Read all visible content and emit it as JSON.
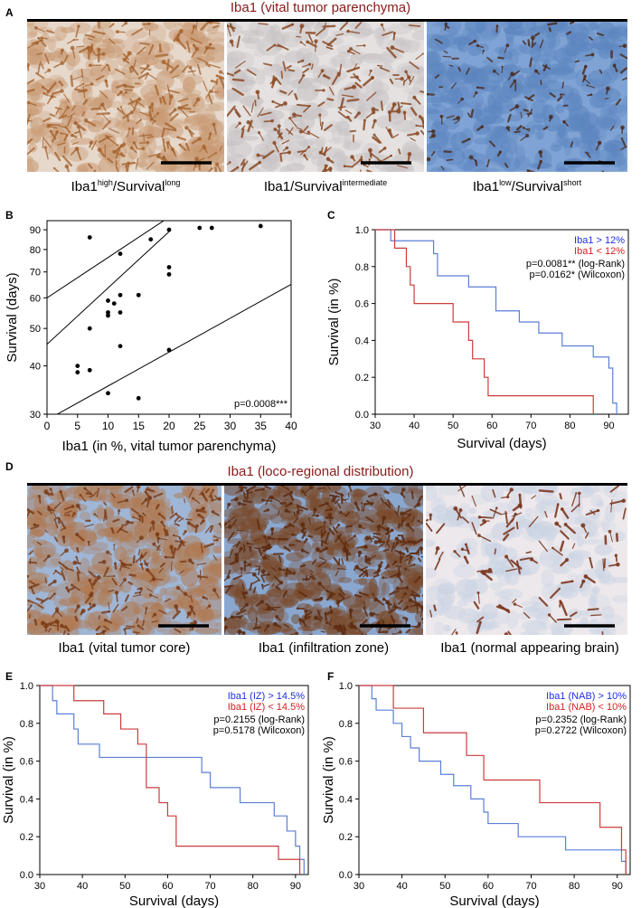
{
  "colors": {
    "title_dark_red": "#8b1a1a",
    "series_blue": "#1f2ee6",
    "series_red": "#d42020",
    "curve_blue": "#5b7fd6",
    "curve_red": "#cc3c3c",
    "tissue_beige": "#e8d9c8",
    "tissue_blue": "#7d9fd1",
    "stain_brown": "#8a4a1e"
  },
  "panelA": {
    "letter": "A",
    "title": "Iba1 (vital tumor parenchyma)",
    "images": [
      {
        "name": "Iba1 high survival long micrograph",
        "label_main": "Iba1",
        "label_sup1": "high",
        "label_mid": "/Survival",
        "label_sup2": "long"
      },
      {
        "name": "Iba1 survival intermediate micrograph",
        "label_main": "Iba1",
        "label_sup1": "",
        "label_mid": "/Survival",
        "label_sup2": "intermediate"
      },
      {
        "name": "Iba1 low survival short micrograph",
        "label_main": "Iba1",
        "label_sup1": "low",
        "label_mid": "/Survival",
        "label_sup2": "short"
      }
    ]
  },
  "panelB": {
    "letter": "B",
    "pvalue": "p=0.0008***"
  },
  "panelC": {
    "letter": "C"
  },
  "panelD": {
    "letter": "D",
    "title": "Iba1 (loco-regional distribution)",
    "captions": [
      "Iba1 (vital tumor core)",
      "Iba1 (infiltration zone)",
      "Iba1 (normal appearing brain)"
    ]
  },
  "panelE": {
    "letter": "E"
  },
  "panelF": {
    "letter": "F"
  },
  "chart_data": [
    {
      "id": "B",
      "type": "scatter",
      "xlabel": "Iba1 (in %, vital tumor parenchyma)",
      "ylabel": "Survival (days)",
      "xlim": [
        0,
        40
      ],
      "ylim": [
        30,
        95
      ],
      "yscale": "log",
      "xticks": [
        0,
        5,
        10,
        15,
        20,
        25,
        30,
        35,
        40
      ],
      "yticks": [
        30,
        40,
        50,
        60,
        70,
        80,
        90
      ],
      "points": [
        [
          5,
          40
        ],
        [
          5,
          38.5
        ],
        [
          7,
          39
        ],
        [
          7,
          50
        ],
        [
          7,
          86
        ],
        [
          10,
          59
        ],
        [
          10,
          55
        ],
        [
          10,
          54
        ],
        [
          10,
          34
        ],
        [
          11,
          58
        ],
        [
          12,
          61
        ],
        [
          12,
          55
        ],
        [
          12,
          78
        ],
        [
          12,
          45
        ],
        [
          15,
          61
        ],
        [
          15,
          33
        ],
        [
          17,
          85
        ],
        [
          20,
          90
        ],
        [
          20,
          72
        ],
        [
          20,
          69
        ],
        [
          20,
          44
        ],
        [
          25,
          91
        ],
        [
          27,
          91
        ],
        [
          35,
          92
        ]
      ],
      "fit_lines": [
        {
          "x": [
            0,
            20
          ],
          "y": [
            45.5,
            89
          ]
        },
        {
          "x": [
            0,
            20
          ],
          "y": [
            60,
            97
          ]
        },
        {
          "x": [
            0,
            40
          ],
          "y": [
            29,
            65
          ]
        }
      ],
      "annotation": "p=0.0008***"
    },
    {
      "id": "C",
      "type": "line",
      "xlabel": "Survival (days)",
      "ylabel": "Survival (in %)",
      "xlim": [
        30,
        95
      ],
      "ylim": [
        0,
        1
      ],
      "xticks": [
        30,
        40,
        50,
        60,
        70,
        80,
        90
      ],
      "yticks": [
        0.0,
        0.2,
        0.4,
        0.6,
        0.8,
        1.0
      ],
      "series": [
        {
          "name": "Iba1 > 12%",
          "color": "blue",
          "steps": [
            [
              30,
              1
            ],
            [
              34,
              0.94
            ],
            [
              45,
              0.87
            ],
            [
              46,
              0.75
            ],
            [
              54,
              0.69
            ],
            [
              61,
              0.56
            ],
            [
              67,
              0.5
            ],
            [
              72,
              0.44
            ],
            [
              78,
              0.37
            ],
            [
              86,
              0.31
            ],
            [
              90,
              0.25
            ],
            [
              91,
              0.06
            ],
            [
              92,
              0
            ]
          ]
        },
        {
          "name": "Iba1 < 12%",
          "color": "red",
          "steps": [
            [
              30,
              1
            ],
            [
              35,
              0.9
            ],
            [
              38,
              0.8
            ],
            [
              39,
              0.7
            ],
            [
              40,
              0.6
            ],
            [
              50,
              0.5
            ],
            [
              54,
              0.4
            ],
            [
              55,
              0.3
            ],
            [
              58,
              0.2
            ],
            [
              59,
              0.1
            ],
            [
              86,
              0
            ]
          ]
        }
      ],
      "annotations": [
        "p=0.0081** (log-Rank)",
        "p=0.0162* (Wilcoxon)"
      ]
    },
    {
      "id": "E",
      "type": "line",
      "xlabel": "Survival (days)",
      "ylabel": "Survival (in %)",
      "xlim": [
        30,
        93
      ],
      "ylim": [
        0,
        1
      ],
      "xticks": [
        30,
        40,
        50,
        60,
        70,
        80,
        90
      ],
      "yticks": [
        0.0,
        0.2,
        0.4,
        0.6,
        0.8,
        1.0
      ],
      "series": [
        {
          "name": "Iba1 (IZ) > 14.5%",
          "color": "blue",
          "steps": [
            [
              30,
              1
            ],
            [
              33,
              0.92
            ],
            [
              34,
              0.85
            ],
            [
              38,
              0.77
            ],
            [
              39,
              0.69
            ],
            [
              44,
              0.62
            ],
            [
              68,
              0.54
            ],
            [
              70,
              0.46
            ],
            [
              77,
              0.38
            ],
            [
              85,
              0.31
            ],
            [
              88,
              0.23
            ],
            [
              90,
              0.15
            ],
            [
              91,
              0.08
            ],
            [
              92,
              0
            ]
          ]
        },
        {
          "name": "Iba1 (IZ) < 14.5%",
          "color": "red",
          "steps": [
            [
              30,
              1
            ],
            [
              38,
              0.92
            ],
            [
              45,
              0.85
            ],
            [
              49,
              0.77
            ],
            [
              53,
              0.69
            ],
            [
              55,
              0.46
            ],
            [
              58,
              0.38
            ],
            [
              60,
              0.31
            ],
            [
              62,
              0.15
            ],
            [
              86,
              0.08
            ],
            [
              91,
              0
            ]
          ]
        }
      ],
      "annotations": [
        "p=0.2155 (log-Rank)",
        "p=0.5178 (Wilcoxon)"
      ]
    },
    {
      "id": "F",
      "type": "line",
      "xlabel": "Survival (days)",
      "ylabel": "Survival (in %)",
      "xlim": [
        30,
        93
      ],
      "ylim": [
        0,
        1
      ],
      "xticks": [
        30,
        40,
        50,
        60,
        70,
        80,
        90
      ],
      "yticks": [
        0.0,
        0.2,
        0.4,
        0.6,
        0.8,
        1.0
      ],
      "series": [
        {
          "name": "Iba1 (NAB) > 10%",
          "color": "blue",
          "steps": [
            [
              30,
              1
            ],
            [
              33,
              0.93
            ],
            [
              34,
              0.87
            ],
            [
              38,
              0.8
            ],
            [
              40,
              0.73
            ],
            [
              42,
              0.67
            ],
            [
              44,
              0.6
            ],
            [
              49,
              0.53
            ],
            [
              52,
              0.47
            ],
            [
              56,
              0.4
            ],
            [
              59,
              0.33
            ],
            [
              60,
              0.27
            ],
            [
              67,
              0.2
            ],
            [
              78,
              0.13
            ],
            [
              91,
              0.07
            ],
            [
              92,
              0
            ]
          ]
        },
        {
          "name": "Iba1 (NAB) < 10%",
          "color": "red",
          "steps": [
            [
              30,
              1
            ],
            [
              38,
              0.88
            ],
            [
              45,
              0.75
            ],
            [
              55,
              0.63
            ],
            [
              59,
              0.5
            ],
            [
              72,
              0.38
            ],
            [
              86,
              0.25
            ],
            [
              91,
              0.13
            ],
            [
              92,
              0
            ]
          ]
        }
      ],
      "annotations": [
        "p=0.2352 (log-Rank)",
        "p=0.2722 (Wilcoxon)"
      ]
    }
  ]
}
